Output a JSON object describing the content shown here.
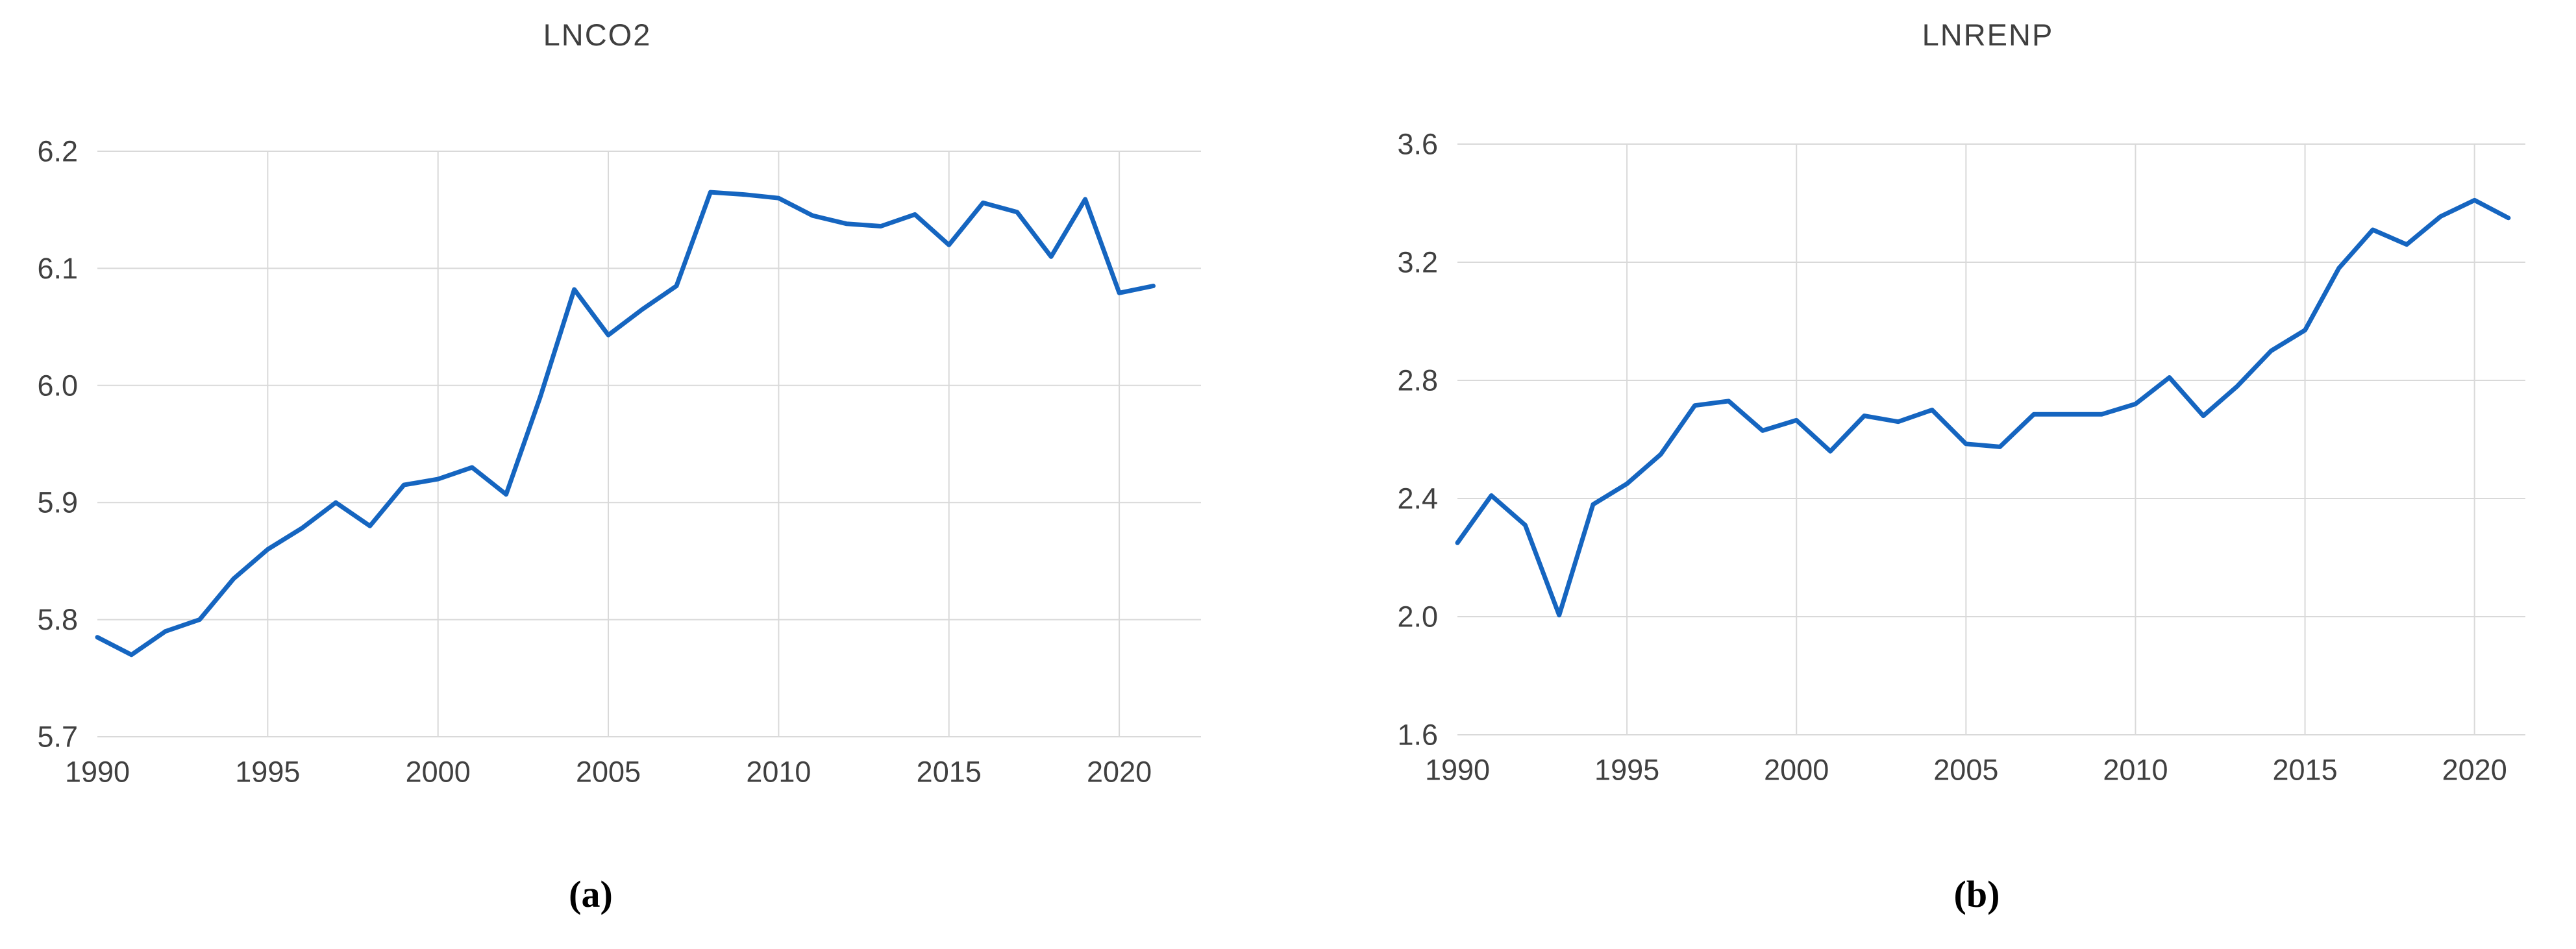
{
  "page": {
    "background": "#ffffff"
  },
  "figure": {
    "panel_a": {
      "title": "LNCO2",
      "caption": "(a)"
    },
    "panel_b": {
      "title": "LNRENP",
      "caption": "(b)"
    }
  },
  "chart_data": [
    {
      "type": "line",
      "title": "LNCO2",
      "caption": "(a)",
      "xlabel": "",
      "ylabel": "",
      "legend": false,
      "grid": true,
      "x": [
        1990,
        1991,
        1992,
        1993,
        1994,
        1995,
        1996,
        1997,
        1998,
        1999,
        2000,
        2001,
        2002,
        2003,
        2004,
        2005,
        2006,
        2007,
        2008,
        2009,
        2010,
        2011,
        2012,
        2013,
        2014,
        2015,
        2016,
        2017,
        2018,
        2019,
        2020,
        2021
      ],
      "values": [
        5.785,
        5.77,
        5.79,
        5.8,
        5.835,
        5.86,
        5.878,
        5.9,
        5.88,
        5.915,
        5.92,
        5.93,
        5.907,
        5.99,
        6.082,
        6.043,
        6.065,
        6.085,
        6.165,
        6.163,
        6.16,
        6.145,
        6.138,
        6.136,
        6.146,
        6.12,
        6.156,
        6.148,
        6.11,
        6.159,
        6.079,
        6.085
      ],
      "xlim": [
        1990,
        2022.4
      ],
      "ylim": [
        5.7,
        6.2
      ],
      "x_ticks": [
        1990,
        1995,
        2000,
        2005,
        2010,
        2015,
        2020
      ],
      "x_tick_labels": [
        "1990",
        "1995",
        "2000",
        "2005",
        "2010",
        "2015",
        "2020"
      ],
      "y_ticks": [
        6.2,
        6.1,
        6.0,
        5.9,
        5.8,
        5.7
      ],
      "y_tick_labels": [
        "6.2",
        "6.1",
        "6.0",
        "5.9",
        "5.8",
        "5.7"
      ],
      "line_color": "#1565c0",
      "grid_color": "#d9d9d9",
      "text_color": "#404040"
    },
    {
      "type": "line",
      "title": "LNRENP",
      "caption": "(b)",
      "xlabel": "",
      "ylabel": "",
      "legend": false,
      "grid": true,
      "x": [
        1990,
        1991,
        1992,
        1993,
        1994,
        1995,
        1996,
        1997,
        1998,
        1999,
        2000,
        2001,
        2002,
        2003,
        2004,
        2005,
        2006,
        2007,
        2008,
        2009,
        2010,
        2011,
        2012,
        2013,
        2014,
        2015,
        2016,
        2017,
        2018,
        2019,
        2020,
        2021
      ],
      "values": [
        2.25,
        2.41,
        2.31,
        2.005,
        2.38,
        2.45,
        2.55,
        2.715,
        2.73,
        2.63,
        2.665,
        2.56,
        2.68,
        2.66,
        2.7,
        2.585,
        2.575,
        2.685,
        2.685,
        2.685,
        2.72,
        2.81,
        2.68,
        2.78,
        2.9,
        2.97,
        3.18,
        3.31,
        3.26,
        3.355,
        3.41,
        3.35
      ],
      "xlim": [
        1990,
        2021.5
      ],
      "ylim": [
        1.6,
        3.6
      ],
      "x_ticks": [
        1990,
        1995,
        2000,
        2005,
        2010,
        2015,
        2020
      ],
      "x_tick_labels": [
        "1990",
        "1995",
        "2000",
        "2005",
        "2010",
        "2015",
        "2020"
      ],
      "y_ticks": [
        3.6,
        3.2,
        2.8,
        2.4,
        2.0,
        1.6
      ],
      "y_tick_labels": [
        "3.6",
        "3.2",
        "2.8",
        "2.4",
        "2.0",
        "1.6"
      ],
      "line_color": "#1565c0",
      "grid_color": "#d9d9d9",
      "text_color": "#404040"
    }
  ]
}
